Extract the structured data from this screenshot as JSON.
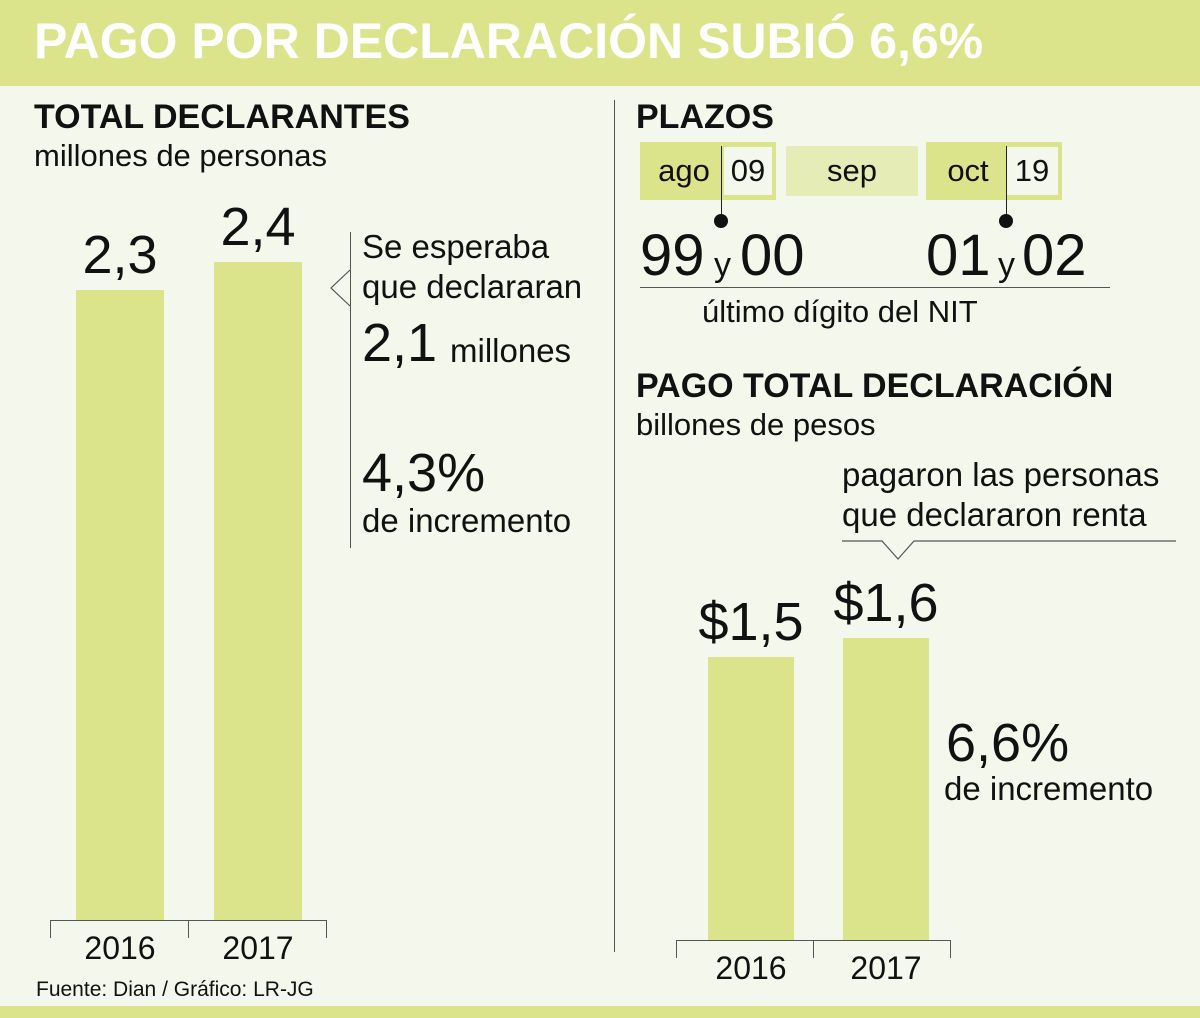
{
  "title": "PAGO POR DECLARACIÓN SUBIÓ 6,6%",
  "declarantes": {
    "title": "TOTAL DECLARANTES",
    "subtitle": "millones de personas",
    "note_line1": "Se esperaba",
    "note_line2": "que declararan",
    "expected_value": "2,1",
    "expected_unit": "millones",
    "increase_value": "4,3%",
    "increase_label": "de incremento"
  },
  "plazos": {
    "title": "PLAZOS",
    "months": [
      {
        "month": "ago",
        "day": "09"
      },
      {
        "month": "sep",
        "day": ""
      },
      {
        "month": "oct",
        "day": "19"
      }
    ],
    "nit_start_a": "99",
    "nit_start_y": "y",
    "nit_start_b": "00",
    "nit_end_a": "01",
    "nit_end_y": "y",
    "nit_end_b": "02",
    "nit_label": "último dígito del NIT"
  },
  "pago": {
    "title": "PAGO TOTAL DECLARACIÓN",
    "subtitle": "billones de pesos",
    "note_line1": "pagaron las personas",
    "note_line2": "que declararon renta",
    "increase_value": "6,6%",
    "increase_label": "de incremento"
  },
  "source": "Fuente: Dian / Gráfico: LR-JG",
  "colors": {
    "bar": "#dbe38b",
    "background": "#f3f7ec"
  },
  "chart_data": [
    {
      "type": "bar",
      "title": "TOTAL DECLARANTES",
      "ylabel": "millones de personas",
      "categories": [
        "2016",
        "2017"
      ],
      "values": [
        2.3,
        2.4
      ],
      "value_labels": [
        "2,3",
        "2,4"
      ]
    },
    {
      "type": "bar",
      "title": "PAGO TOTAL DECLARACIÓN",
      "ylabel": "billones de pesos",
      "categories": [
        "2016",
        "2017"
      ],
      "values": [
        1.5,
        1.6
      ],
      "value_labels": [
        "$1,5",
        "$1,6"
      ]
    }
  ]
}
